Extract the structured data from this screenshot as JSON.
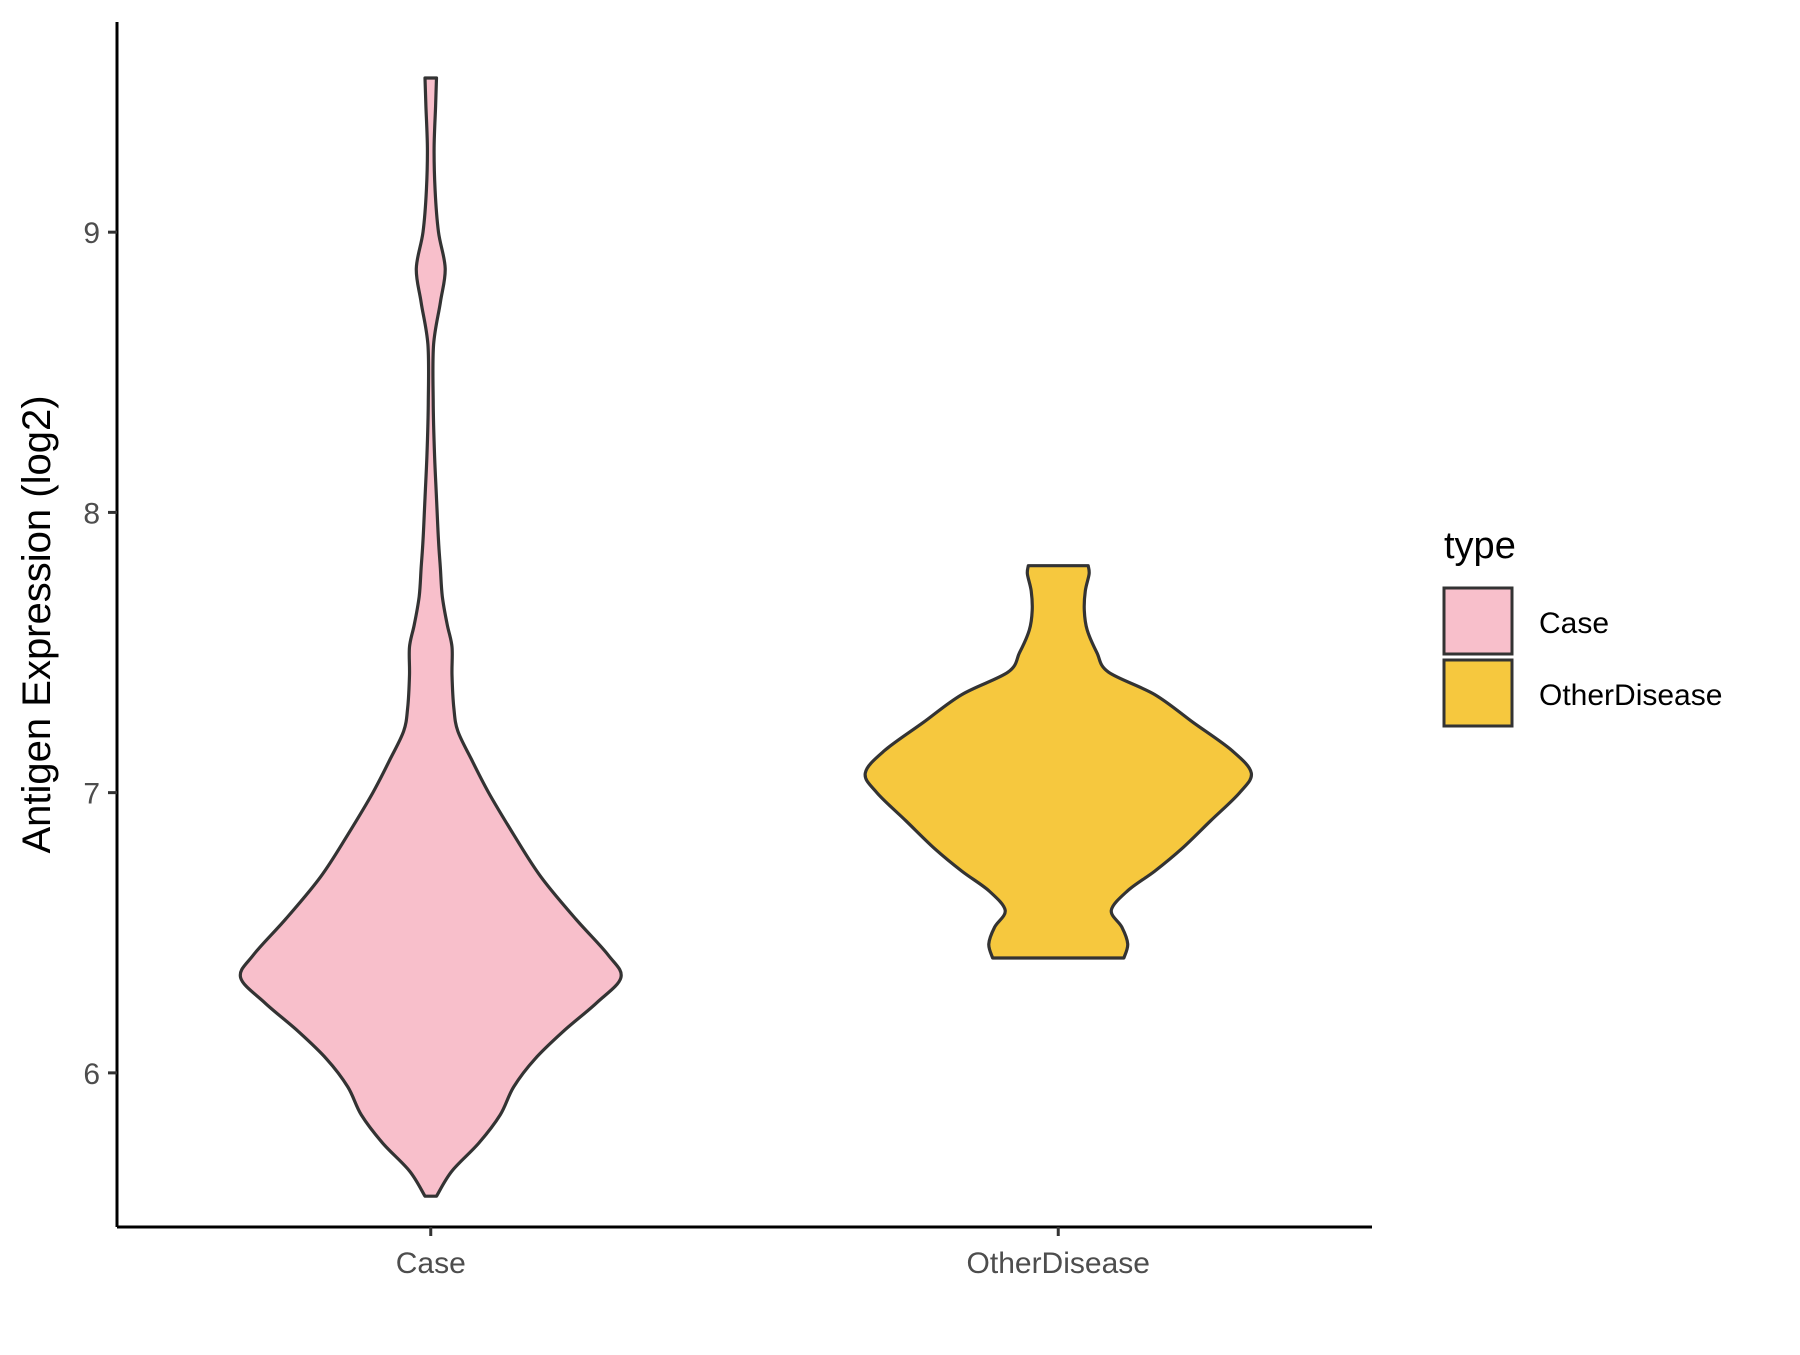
{
  "chart_data": {
    "type": "violin",
    "title": "",
    "xlabel": "",
    "ylabel": "Antigen Expression (log2)",
    "categories": [
      "Case",
      "OtherDisease"
    ],
    "ylim": [
      5.45,
      9.75
    ],
    "yticks": [
      6,
      7,
      8,
      9
    ],
    "grid": false,
    "legend": {
      "title": "type",
      "placement": "right",
      "entries": [
        {
          "label": "Case",
          "color": "#F8BFCB"
        },
        {
          "label": "OtherDisease",
          "color": "#F6C83E"
        }
      ]
    },
    "series": [
      {
        "name": "Case",
        "color": "#F8BFCB",
        "min": 5.56,
        "max": 9.55,
        "density": [
          [
            5.56,
            0.06
          ],
          [
            5.65,
            0.22
          ],
          [
            5.75,
            0.5
          ],
          [
            5.85,
            0.72
          ],
          [
            5.95,
            0.86
          ],
          [
            6.05,
            1.08
          ],
          [
            6.15,
            1.38
          ],
          [
            6.25,
            1.72
          ],
          [
            6.34,
            1.97
          ],
          [
            6.42,
            1.84
          ],
          [
            6.55,
            1.5
          ],
          [
            6.7,
            1.14
          ],
          [
            6.85,
            0.86
          ],
          [
            7.0,
            0.6
          ],
          [
            7.12,
            0.42
          ],
          [
            7.22,
            0.28
          ],
          [
            7.3,
            0.24
          ],
          [
            7.42,
            0.22
          ],
          [
            7.52,
            0.22
          ],
          [
            7.6,
            0.17
          ],
          [
            7.7,
            0.12
          ],
          [
            7.8,
            0.1
          ],
          [
            7.9,
            0.08
          ],
          [
            8.05,
            0.06
          ],
          [
            8.2,
            0.04
          ],
          [
            8.4,
            0.025
          ],
          [
            8.6,
            0.03
          ],
          [
            8.75,
            0.1
          ],
          [
            8.87,
            0.15
          ],
          [
            9.0,
            0.08
          ],
          [
            9.15,
            0.045
          ],
          [
            9.3,
            0.035
          ],
          [
            9.45,
            0.05
          ],
          [
            9.55,
            0.06
          ]
        ]
      },
      {
        "name": "OtherDisease",
        "color": "#F6C83E",
        "min": 6.41,
        "max": 7.81,
        "density": [
          [
            6.41,
            0.68
          ],
          [
            6.46,
            0.72
          ],
          [
            6.52,
            0.66
          ],
          [
            6.58,
            0.55
          ],
          [
            6.65,
            0.72
          ],
          [
            6.72,
            1.0
          ],
          [
            6.8,
            1.28
          ],
          [
            6.9,
            1.58
          ],
          [
            7.0,
            1.88
          ],
          [
            7.07,
            2.0
          ],
          [
            7.15,
            1.8
          ],
          [
            7.25,
            1.4
          ],
          [
            7.35,
            1.0
          ],
          [
            7.43,
            0.52
          ],
          [
            7.5,
            0.4
          ],
          [
            7.58,
            0.3
          ],
          [
            7.65,
            0.27
          ],
          [
            7.72,
            0.28
          ],
          [
            7.78,
            0.32
          ],
          [
            7.81,
            0.31
          ]
        ]
      }
    ]
  }
}
